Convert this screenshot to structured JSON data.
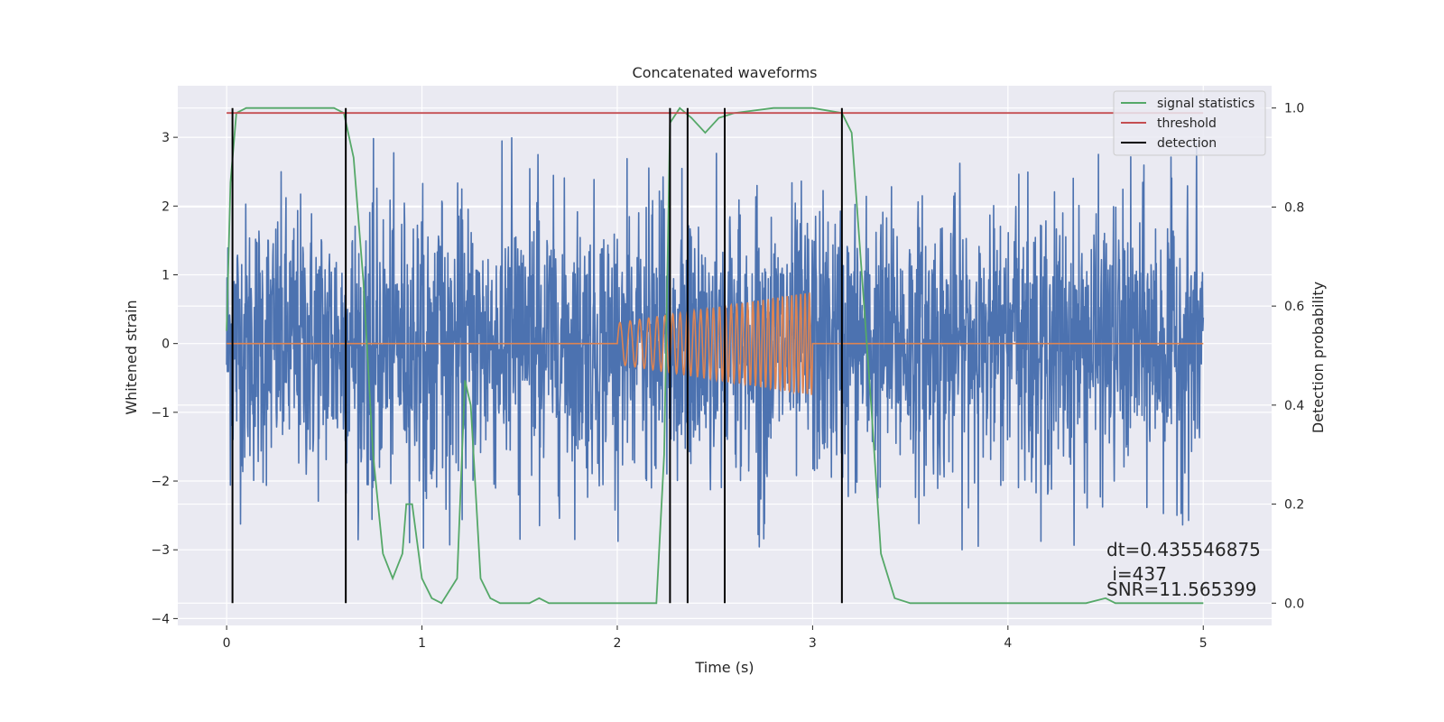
{
  "chart_data": {
    "type": "line",
    "title": "Concatenated waveforms",
    "xlabel": "Time (s)",
    "ylabel_left": "Whitened strain",
    "ylabel_right": "Detection probability",
    "xlim": [
      -0.25,
      5.35
    ],
    "ylim_left": [
      -4.1,
      3.75
    ],
    "ylim_right": [
      -0.045,
      1.045
    ],
    "x_ticks": [
      0,
      1,
      2,
      3,
      4,
      5
    ],
    "y_ticks_left": [
      -4,
      -3,
      -2,
      -1,
      0,
      1,
      2,
      3
    ],
    "y_ticks_right": [
      0.0,
      0.2,
      0.4,
      0.6,
      0.8,
      1.0
    ],
    "x_tick_labels": [
      "0",
      "1",
      "2",
      "3",
      "4",
      "5"
    ],
    "y_tick_labels_left": [
      "−4",
      "−3",
      "−2",
      "−1",
      "0",
      "1",
      "2",
      "3"
    ],
    "y_tick_labels_right": [
      "0.0",
      "0.2",
      "0.4",
      "0.6",
      "0.8",
      "1.0"
    ],
    "grid": true,
    "legend_position": "top-right",
    "legend": [
      {
        "name": "signal statistics",
        "color": "#55a868"
      },
      {
        "name": "threshold",
        "color": "#c44e52"
      },
      {
        "name": "detection",
        "color": "#000000"
      }
    ],
    "series": {
      "strain": {
        "color": "#4c72b0",
        "x_range": [
          0,
          5
        ],
        "typical_amplitude": 1.0,
        "peak_amplitude": 3.0
      },
      "template": {
        "color": "#dd8452",
        "x_range": [
          2.0,
          3.0
        ],
        "amplitude_start": 0.3,
        "amplitude_end": 0.75,
        "zero_outside": true
      },
      "signal_statistics": {
        "color": "#55a868",
        "axis": "right",
        "points": [
          [
            0.0,
            0.55
          ],
          [
            0.02,
            0.85
          ],
          [
            0.05,
            0.99
          ],
          [
            0.1,
            1.0
          ],
          [
            0.55,
            1.0
          ],
          [
            0.6,
            0.99
          ],
          [
            0.65,
            0.9
          ],
          [
            0.7,
            0.65
          ],
          [
            0.75,
            0.3
          ],
          [
            0.8,
            0.1
          ],
          [
            0.85,
            0.05
          ],
          [
            0.9,
            0.1
          ],
          [
            0.92,
            0.2
          ],
          [
            0.95,
            0.2
          ],
          [
            1.0,
            0.05
          ],
          [
            1.05,
            0.01
          ],
          [
            1.1,
            0.0
          ],
          [
            1.18,
            0.05
          ],
          [
            1.22,
            0.45
          ],
          [
            1.25,
            0.4
          ],
          [
            1.3,
            0.05
          ],
          [
            1.35,
            0.01
          ],
          [
            1.4,
            0.0
          ],
          [
            1.55,
            0.0
          ],
          [
            1.6,
            0.01
          ],
          [
            1.65,
            0.0
          ],
          [
            2.2,
            0.0
          ],
          [
            2.24,
            0.3
          ],
          [
            2.27,
            0.97
          ],
          [
            2.32,
            1.0
          ],
          [
            2.38,
            0.98
          ],
          [
            2.45,
            0.95
          ],
          [
            2.52,
            0.98
          ],
          [
            2.6,
            0.99
          ],
          [
            2.8,
            1.0
          ],
          [
            3.0,
            1.0
          ],
          [
            3.15,
            0.99
          ],
          [
            3.2,
            0.95
          ],
          [
            3.3,
            0.4
          ],
          [
            3.35,
            0.1
          ],
          [
            3.42,
            0.01
          ],
          [
            3.5,
            0.0
          ],
          [
            4.4,
            0.0
          ],
          [
            4.5,
            0.01
          ],
          [
            4.55,
            0.0
          ],
          [
            5.0,
            0.0
          ]
        ]
      },
      "threshold": {
        "color": "#c44e52",
        "axis": "right",
        "x_range": [
          0,
          5
        ],
        "value": 0.99
      },
      "detection": {
        "color": "#000000",
        "x": [
          0.03,
          0.61,
          2.27,
          2.36,
          2.55,
          3.15
        ]
      }
    },
    "annotations": [
      {
        "text": "dt=0.435546875"
      },
      {
        "text": " i=437"
      },
      {
        "text": "SNR=11.565399"
      }
    ]
  }
}
